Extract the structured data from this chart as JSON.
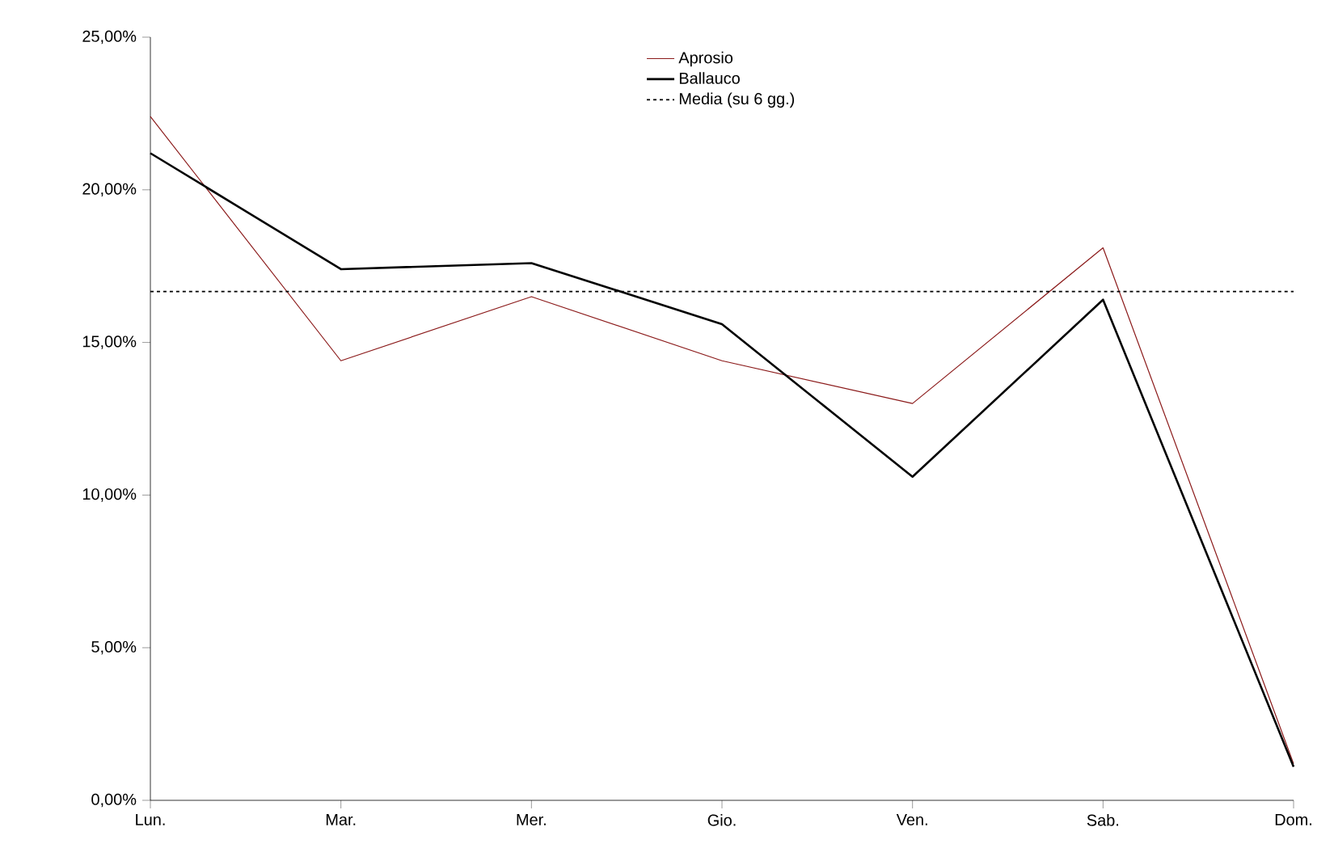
{
  "chart_data": {
    "type": "line",
    "categories": [
      "Lun.",
      "Mar.",
      "Mer.",
      "Gio.",
      "Ven.",
      "Sab.",
      "Dom."
    ],
    "series": [
      {
        "name": "Aprosio",
        "color": "#8b1a1a",
        "values": [
          22.4,
          14.4,
          16.5,
          14.4,
          13.0,
          18.1,
          1.2
        ]
      },
      {
        "name": "Ballauco",
        "color": "#000000",
        "values": [
          21.2,
          17.4,
          17.6,
          15.6,
          10.6,
          16.4,
          1.1
        ]
      }
    ],
    "ref_lines": [
      {
        "axis": "y",
        "value": 16.67,
        "label": "Media (su 6 gg.)",
        "color": "#000000",
        "line_style": "dotted"
      }
    ],
    "ylim": [
      0,
      25
    ],
    "yticks": [
      {
        "value": 0,
        "label": "0,00%"
      },
      {
        "value": 5,
        "label": "5,00%"
      },
      {
        "value": 10,
        "label": "10,00%"
      },
      {
        "value": 15,
        "label": "15,00%"
      },
      {
        "value": 20,
        "label": "20,00%"
      },
      {
        "value": 25,
        "label": "25,00%"
      }
    ],
    "legend": "top",
    "grid": false,
    "marker": "none",
    "line_style": "solid"
  }
}
